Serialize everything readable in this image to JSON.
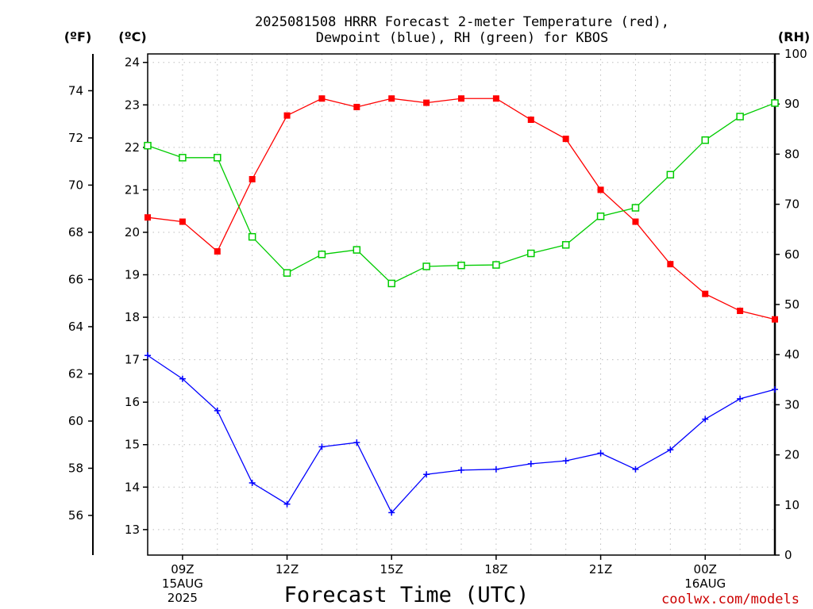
{
  "chart_data": {
    "type": "line",
    "title_line1": "2025081508 HRRR Forecast 2-meter Temperature (red),",
    "title_line2": "Dewpoint (blue), RH (green) for KBOS",
    "unit_f": "(ºF)",
    "unit_c": "(ºC)",
    "unit_rh": "(RH)",
    "xlabel": "Forecast Time (UTC)",
    "watermark": "coolwx.com/models",
    "x_ticks": [
      {
        "hour": 9,
        "label": "09Z",
        "sub1": "15AUG",
        "sub2": "2025"
      },
      {
        "hour": 12,
        "label": "12Z",
        "sub1": "",
        "sub2": ""
      },
      {
        "hour": 15,
        "label": "15Z",
        "sub1": "",
        "sub2": ""
      },
      {
        "hour": 18,
        "label": "18Z",
        "sub1": "",
        "sub2": ""
      },
      {
        "hour": 21,
        "label": "21Z",
        "sub1": "",
        "sub2": ""
      },
      {
        "hour": 24,
        "label": "00Z",
        "sub1": "16AUG",
        "sub2": ""
      }
    ],
    "xlim": [
      8,
      26
    ],
    "ylim_c": [
      12.4,
      24.2
    ],
    "ylim_rh": [
      0,
      100
    ],
    "c_ticks": [
      13,
      14,
      15,
      16,
      17,
      18,
      19,
      20,
      21,
      22,
      23,
      24
    ],
    "f_ticks": [
      56,
      58,
      60,
      62,
      64,
      66,
      68,
      70,
      72,
      74
    ],
    "rh_ticks": [
      0,
      10,
      20,
      30,
      40,
      50,
      60,
      70,
      80,
      90,
      100
    ],
    "grid": true,
    "x": [
      8,
      9,
      10,
      11,
      12,
      13,
      14,
      15,
      16,
      17,
      18,
      19,
      20,
      21,
      22,
      23,
      24,
      25,
      26
    ],
    "series": [
      {
        "name": "Temperature (red)",
        "axis": "celsius",
        "color": "#ff0000",
        "marker": "filled-square",
        "values": [
          20.35,
          20.25,
          19.55,
          21.25,
          22.75,
          23.15,
          22.95,
          23.15,
          23.05,
          23.15,
          23.15,
          22.65,
          22.2,
          21.0,
          20.25,
          19.25,
          18.55,
          18.15,
          17.95
        ]
      },
      {
        "name": "Dewpoint (blue)",
        "axis": "celsius",
        "color": "#0000ff",
        "marker": "plus",
        "values": [
          17.1,
          16.55,
          15.8,
          14.1,
          13.6,
          14.95,
          15.05,
          13.4,
          14.3,
          14.4,
          14.42,
          14.55,
          14.62,
          14.8,
          14.42,
          14.88,
          15.6,
          16.08,
          16.3
        ]
      },
      {
        "name": "RH (green)",
        "axis": "rh",
        "color": "#00cc00",
        "marker": "open-square",
        "values": [
          81.7,
          79.3,
          79.3,
          63.5,
          56.3,
          60.0,
          60.9,
          54.2,
          57.6,
          57.8,
          57.9,
          60.2,
          61.9,
          67.6,
          69.3,
          75.9,
          82.8,
          87.5,
          90.2
        ]
      }
    ]
  }
}
